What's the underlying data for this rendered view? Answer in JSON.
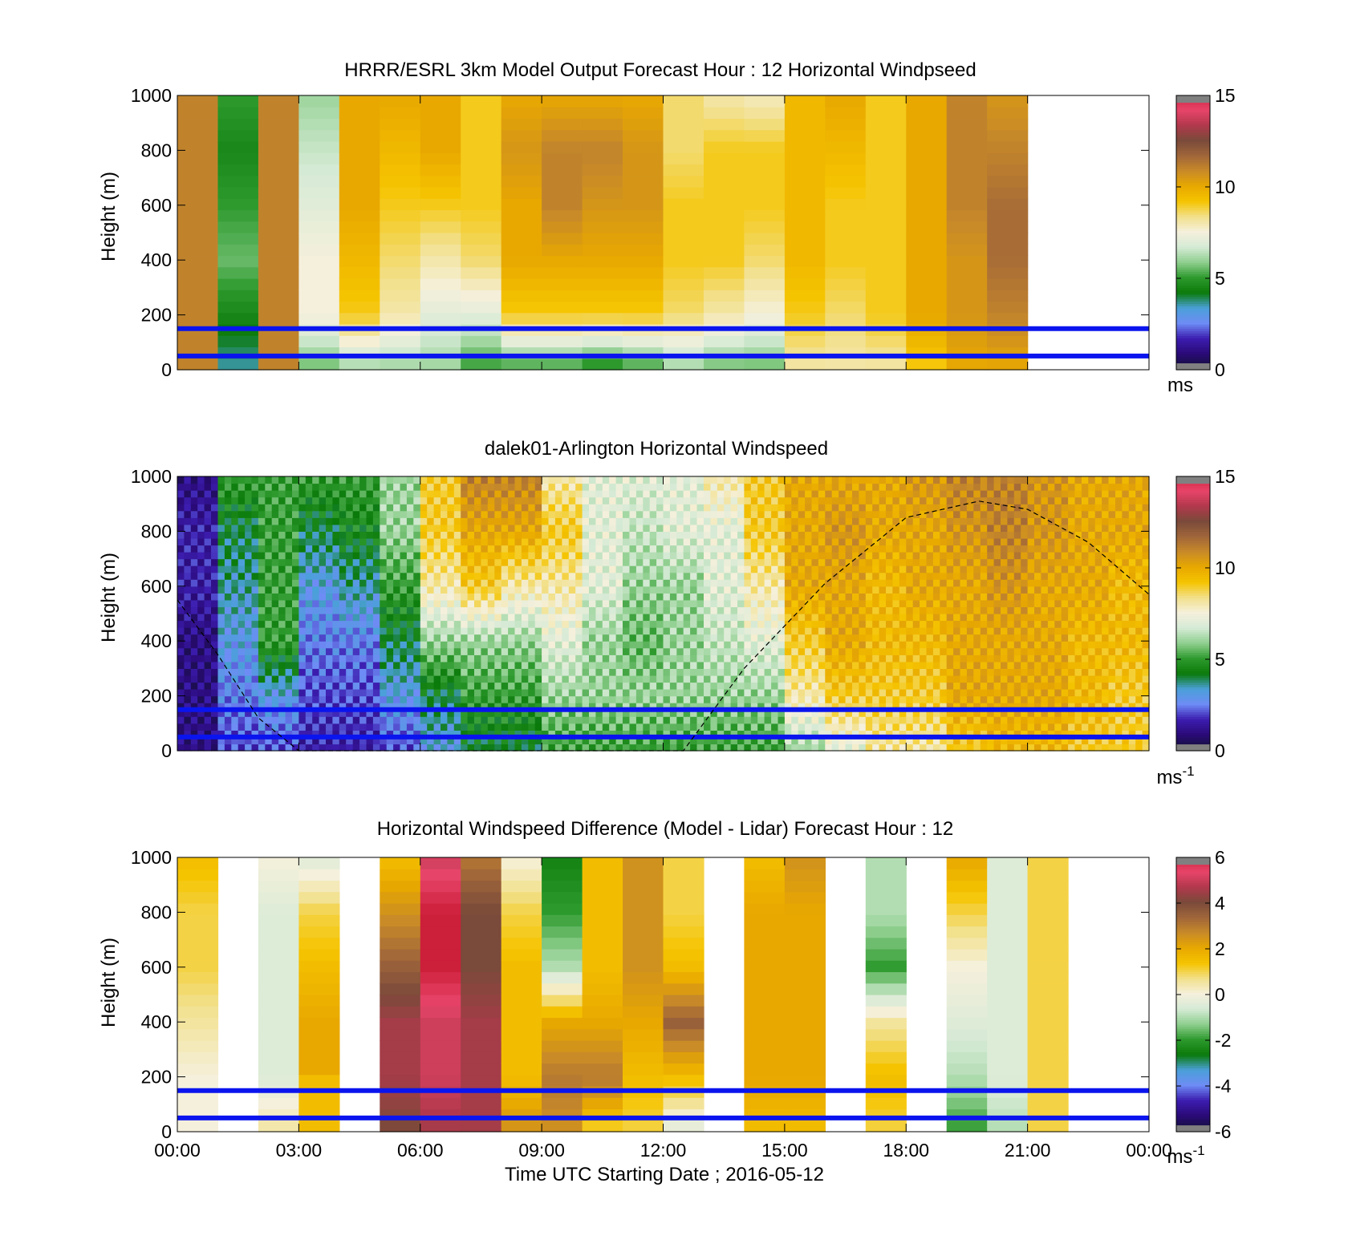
{
  "figure": {
    "xlabel": "Time UTC  Starting Date ; 2016-05-12"
  },
  "colors": {
    "speed_ramp": [
      "#111133",
      "#2a0a77",
      "#3c1db0",
      "#6e8cf5",
      "#4aa0d8",
      "#0a7a0a",
      "#2e9a2e",
      "#8fcf8f",
      "#d5ead5",
      "#f5f0dc",
      "#f2e08a",
      "#f5c400",
      "#e8a800",
      "#c88a28",
      "#a0663a",
      "#7a4a3a",
      "#b2384c",
      "#e8456a",
      "#cc1f3a"
    ],
    "diff_ramp": [
      "#111133",
      "#2a0a77",
      "#3c1db0",
      "#6e8cf5",
      "#4aa0d8",
      "#0a7a0a",
      "#2e9a2e",
      "#8fcf8f",
      "#d5ead5",
      "#f5f0dc",
      "#f2e08a",
      "#f5c400",
      "#e8a800",
      "#c88a28",
      "#a0663a",
      "#7a4a3a",
      "#b2384c",
      "#e8456a",
      "#cc1f3a"
    ],
    "blue_line": "#0a14ee",
    "missing": "#a8a8a8"
  },
  "x_ticks": [
    "00:00",
    "03:00",
    "06:00",
    "09:00",
    "12:00",
    "15:00",
    "18:00",
    "21:00",
    "00:00"
  ],
  "y_ticks": [
    "0",
    "200",
    "400",
    "600",
    "800",
    "1000"
  ],
  "panels": [
    {
      "title": "HRRR/ESRL 3km Model Output   Forecast Hour : 12 Horizontal Windpseed",
      "ylabel": "Height (m)",
      "colorbar_unit": "ms",
      "colorbar_unit_sup": "",
      "colorbar_ticks": [
        "0",
        "5",
        "10",
        "15"
      ]
    },
    {
      "title": "dalek01-Arlington  Horizontal Windspeed",
      "ylabel": "Height (m)",
      "colorbar_unit": "ms",
      "colorbar_unit_sup": "-1",
      "colorbar_ticks": [
        "0",
        "5",
        "10",
        "15"
      ]
    },
    {
      "title": "Horizontal Windspeed Difference (Model - Lidar) Forecast Hour : 12",
      "ylabel": "Height (m)",
      "colorbar_unit": "ms",
      "colorbar_unit_sup": "-1",
      "colorbar_ticks": [
        "-6",
        "-4",
        "-2",
        "0",
        "2",
        "4",
        "6"
      ]
    }
  ],
  "chart_data": [
    {
      "type": "heatmap",
      "title": "HRRR/ESRL 3km Model Output   Forecast Hour : 12 Horizontal Windpseed",
      "xlabel": "",
      "ylabel": "Height (m)",
      "x_range_hours": [
        0,
        24
      ],
      "y_range_m": [
        0,
        1000
      ],
      "color_range": [
        0,
        15
      ],
      "colorbar_unit": "ms",
      "hourly_columns": [
        {
          "hour": 0,
          "profile": [
            11,
            11,
            11,
            11,
            11,
            11
          ]
        },
        {
          "hour": 1,
          "profile": [
            3.5,
            4.5,
            5.5,
            5,
            4.5,
            5
          ]
        },
        {
          "hour": 2,
          "profile": [
            11,
            11,
            11,
            11,
            11,
            11
          ]
        },
        {
          "hour": 3,
          "profile": [
            5.5,
            7.5,
            7.5,
            7,
            6.5,
            6
          ]
        },
        {
          "hour": 4,
          "profile": [
            6,
            9,
            9.5,
            10,
            10,
            10
          ]
        },
        {
          "hour": 5,
          "profile": [
            6,
            8,
            8.5,
            9,
            9.5,
            10
          ]
        },
        {
          "hour": 6,
          "profile": [
            6,
            7,
            8,
            9,
            10,
            10
          ]
        },
        {
          "hour": 7,
          "profile": [
            5,
            7,
            8.5,
            9,
            9,
            9
          ]
        },
        {
          "hour": 8,
          "profile": [
            5,
            9,
            10,
            10,
            10.5,
            10
          ]
        },
        {
          "hour": 9,
          "profile": [
            5,
            9,
            10,
            11,
            11,
            10
          ]
        },
        {
          "hour": 10,
          "profile": [
            4.5,
            9,
            10,
            10.5,
            11,
            10
          ]
        },
        {
          "hour": 11,
          "profile": [
            5,
            9,
            10,
            10.5,
            10.5,
            10
          ]
        },
        {
          "hour": 12,
          "profile": [
            6,
            8.5,
            9,
            9,
            8.5,
            8.5
          ]
        },
        {
          "hour": 13,
          "profile": [
            5.5,
            8,
            9,
            9,
            9,
            8
          ]
        },
        {
          "hour": 14,
          "profile": [
            5.5,
            7.5,
            8.5,
            9,
            9,
            7.8
          ]
        },
        {
          "hour": 15,
          "profile": [
            8,
            9,
            9.5,
            9.5,
            9.5,
            9.5
          ]
        },
        {
          "hour": 16,
          "profile": [
            8,
            8.5,
            9,
            9,
            9.5,
            10
          ]
        },
        {
          "hour": 17,
          "profile": [
            8,
            9,
            9,
            9,
            9,
            9
          ]
        },
        {
          "hour": 18,
          "profile": [
            9,
            10,
            10,
            10,
            10,
            10
          ]
        },
        {
          "hour": 19,
          "profile": [
            10,
            10.5,
            10.5,
            11,
            11,
            11
          ]
        },
        {
          "hour": 20,
          "profile": [
            10,
            11,
            11.5,
            11.5,
            11,
            10.5
          ]
        }
      ],
      "reference_lines_m": [
        50,
        150
      ]
    },
    {
      "type": "heatmap",
      "title": "dalek01-Arlington  Horizontal Windspeed",
      "xlabel": "",
      "ylabel": "Height (m)",
      "x_range_hours": [
        0,
        24
      ],
      "y_range_m": [
        0,
        1000
      ],
      "color_range": [
        0,
        15
      ],
      "colorbar_unit": "ms-1",
      "hourly_columns": [
        {
          "hour": 0,
          "profile": [
            1,
            1,
            1,
            1.5,
            1.5,
            1
          ]
        },
        {
          "hour": 1,
          "profile": [
            2,
            2.5,
            3,
            3.5,
            4,
            5
          ]
        },
        {
          "hour": 2,
          "profile": [
            2,
            3,
            5,
            5,
            5,
            5
          ]
        },
        {
          "hour": 3,
          "profile": [
            1.5,
            2,
            2.5,
            3,
            4,
            5
          ]
        },
        {
          "hour": 4,
          "profile": [
            1.5,
            2,
            2.5,
            3.5,
            4.5,
            5
          ]
        },
        {
          "hour": 5,
          "profile": [
            2,
            3,
            4,
            5,
            6,
            6
          ]
        },
        {
          "hour": 6,
          "profile": [
            3,
            4,
            6,
            8,
            9,
            9
          ]
        },
        {
          "hour": 7,
          "profile": [
            4,
            5,
            6,
            9,
            10,
            11
          ]
        },
        {
          "hour": 8,
          "profile": [
            4,
            5,
            6,
            8,
            10,
            11
          ]
        },
        {
          "hour": 9,
          "profile": [
            5,
            6,
            7,
            8,
            9,
            8
          ]
        },
        {
          "hour": 10,
          "profile": [
            5,
            6,
            6,
            7,
            7,
            7
          ]
        },
        {
          "hour": 11,
          "profile": [
            5,
            6,
            5.5,
            6,
            6.5,
            7
          ]
        },
        {
          "hour": 12,
          "profile": [
            5,
            6,
            6,
            6,
            7,
            7
          ]
        },
        {
          "hour": 13,
          "profile": [
            5,
            6,
            6.5,
            7,
            7,
            8
          ]
        },
        {
          "hour": 14,
          "profile": [
            5,
            6,
            7,
            8,
            9,
            9
          ]
        },
        {
          "hour": 15,
          "profile": [
            6,
            8,
            9,
            10,
            10,
            10
          ]
        },
        {
          "hour": 16,
          "profile": [
            7,
            9,
            10,
            10,
            10.5,
            10
          ]
        },
        {
          "hour": 17,
          "profile": [
            8,
            9,
            9.5,
            9.5,
            10,
            10
          ]
        },
        {
          "hour": 18,
          "profile": [
            8,
            9,
            9.5,
            10,
            10,
            10.5
          ]
        },
        {
          "hour": 19,
          "profile": [
            9,
            10,
            10,
            10,
            10.5,
            11
          ]
        },
        {
          "hour": 20,
          "profile": [
            9.5,
            10,
            10,
            10.5,
            11,
            11
          ]
        },
        {
          "hour": 21,
          "profile": [
            9.5,
            10,
            10,
            10,
            10.5,
            10.5
          ]
        },
        {
          "hour": 22,
          "profile": [
            9,
            9.5,
            9.5,
            10,
            10,
            10
          ]
        },
        {
          "hour": 23,
          "profile": [
            9,
            9,
            9.5,
            9.5,
            10,
            10
          ]
        }
      ],
      "reference_lines_m": [
        50,
        150
      ],
      "boundary_layer_curve": {
        "style": "dashed",
        "x_hours": [
          0,
          1,
          2,
          3,
          12.5,
          14,
          16,
          18,
          19.8,
          21,
          22.5,
          24
        ],
        "y_m": [
          550,
          350,
          120,
          0,
          0,
          300,
          610,
          850,
          910,
          880,
          760,
          570
        ]
      }
    },
    {
      "type": "heatmap",
      "title": "Horizontal Windspeed Difference (Model - Lidar) Forecast Hour : 12",
      "xlabel": "Time UTC  Starting Date ; 2016-05-12",
      "ylabel": "Height (m)",
      "x_range_hours": [
        0,
        24
      ],
      "y_range_m": [
        0,
        1000
      ],
      "color_range": [
        -6,
        6
      ],
      "colorbar_unit": "ms-1",
      "hourly_columns": [
        {
          "hour": 0,
          "profile": [
            0,
            0,
            0.5,
            1,
            1,
            1.5
          ]
        },
        {
          "hour": 2,
          "profile": [
            0.5,
            -0.5,
            -0.5,
            -0.5,
            -0.5,
            0
          ]
        },
        {
          "hour": 3,
          "profile": [
            1.5,
            null,
            2,
            1.5,
            1,
            -0.5
          ]
        },
        {
          "hour": 5,
          "profile": [
            4,
            4.5,
            4.5,
            3.5,
            2.5,
            1.5
          ]
        },
        {
          "hour": 6,
          "profile": [
            4.5,
            5,
            5,
            6,
            6,
            5
          ]
        },
        {
          "hour": 7,
          "profile": [
            4.5,
            4.5,
            4.5,
            4,
            4,
            3
          ]
        },
        {
          "hour": 8,
          "profile": [
            2.5,
            1.5,
            1.5,
            1.5,
            1,
            0
          ]
        },
        {
          "hour": 9,
          "profile": [
            2.5,
            3,
            2,
            -1,
            -2,
            -2.5
          ]
        },
        {
          "hour": 10,
          "profile": [
            1,
            3,
            2,
            1.5,
            1.5,
            1.5
          ]
        },
        {
          "hour": 11,
          "profile": [
            1,
            1.5,
            2,
            2.5,
            2.5,
            2.5
          ]
        },
        {
          "hour": 12,
          "profile": [
            -0.5,
            1.5,
            3.5,
            1.5,
            1,
            1
          ]
        },
        {
          "hour": 14,
          "profile": [
            1.5,
            2,
            2,
            2,
            2,
            1.5
          ]
        },
        {
          "hour": 15,
          "profile": [
            1.5,
            2,
            2,
            2,
            2,
            2.5
          ]
        },
        {
          "hour": 17,
          "profile": [
            1,
            1.5,
            0.5,
            -2,
            -1,
            -1
          ]
        },
        {
          "hour": 19,
          "profile": [
            -2,
            -1,
            -0.5,
            0,
            1,
            2
          ]
        },
        {
          "hour": 20,
          "profile": [
            -1,
            -0.5,
            -0.5,
            -0.5,
            -0.5,
            -0.5
          ]
        },
        {
          "hour": 21,
          "profile": [
            1,
            1,
            1,
            1,
            1,
            1
          ]
        }
      ],
      "reference_lines_m": [
        50,
        150
      ]
    }
  ]
}
